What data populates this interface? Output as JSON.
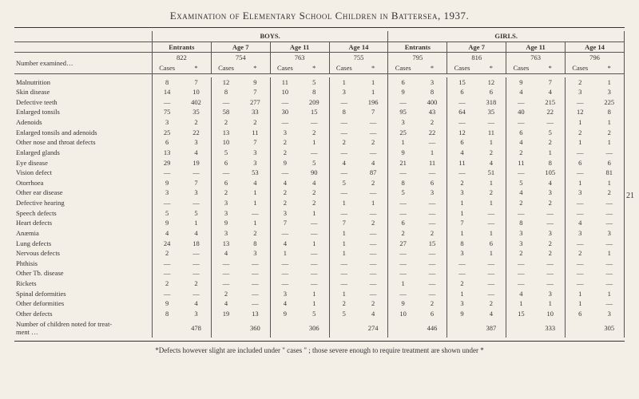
{
  "title": "Examination of Elementary School Children in Battersea, 1937.",
  "page_side_number": "21",
  "footnote": "*Defects however slight are included under \" cases \" ;  those severe enough to require treatment are shown under *",
  "colors": {
    "background": "#f3efe6",
    "text": "#333333",
    "rule": "#555555"
  },
  "typography": {
    "title_fontsize_pt": 13,
    "table_fontsize_pt": 8.5,
    "font_family": "Georgia, Times New Roman, serif"
  },
  "groups": {
    "boys": "BOYS.",
    "girls": "GIRLS."
  },
  "age_headers": [
    "Entrants",
    "Age 7",
    "Age 11",
    "Age 14"
  ],
  "subcol_headers": {
    "cases": "Cases",
    "star": "*"
  },
  "number_examined_label": "Number examined…",
  "number_examined": {
    "boys": [
      822,
      754,
      763,
      755
    ],
    "girls": [
      795,
      816,
      763,
      796
    ]
  },
  "rows": [
    {
      "label": "Malnutrition",
      "b": [
        [
          8,
          7
        ],
        [
          12,
          9
        ],
        [
          11,
          5
        ],
        [
          1,
          1
        ]
      ],
      "g": [
        [
          6,
          3
        ],
        [
          15,
          12
        ],
        [
          9,
          7
        ],
        [
          2,
          1
        ]
      ]
    },
    {
      "label": "Skin disease",
      "b": [
        [
          14,
          10
        ],
        [
          8,
          7
        ],
        [
          10,
          8
        ],
        [
          3,
          1
        ]
      ],
      "g": [
        [
          9,
          8
        ],
        [
          6,
          6
        ],
        [
          4,
          4
        ],
        [
          3,
          3
        ]
      ]
    },
    {
      "label": "Defective teeth",
      "b": [
        [
          "—",
          402
        ],
        [
          "—",
          277
        ],
        [
          "—",
          209
        ],
        [
          "—",
          196
        ]
      ],
      "g": [
        [
          "—",
          400
        ],
        [
          "—",
          318
        ],
        [
          "—",
          215
        ],
        [
          "—",
          225
        ]
      ]
    },
    {
      "label": "Enlarged tonsils",
      "b": [
        [
          75,
          35
        ],
        [
          58,
          33
        ],
        [
          30,
          15
        ],
        [
          8,
          7
        ]
      ],
      "g": [
        [
          95,
          43
        ],
        [
          64,
          35
        ],
        [
          40,
          22
        ],
        [
          12,
          8
        ]
      ]
    },
    {
      "label": "Adenoids",
      "b": [
        [
          3,
          2
        ],
        [
          2,
          2
        ],
        [
          "—",
          "—"
        ],
        [
          "—",
          "—"
        ]
      ],
      "g": [
        [
          3,
          2
        ],
        [
          "—",
          "—"
        ],
        [
          "—",
          "—"
        ],
        [
          1,
          1
        ]
      ]
    },
    {
      "label": "Enlarged tonsils and adenoids",
      "b": [
        [
          25,
          22
        ],
        [
          13,
          11
        ],
        [
          3,
          2
        ],
        [
          "—",
          "—"
        ]
      ],
      "g": [
        [
          25,
          22
        ],
        [
          12,
          11
        ],
        [
          6,
          5
        ],
        [
          2,
          2
        ]
      ]
    },
    {
      "label": "Other nose and throat defects",
      "b": [
        [
          6,
          3
        ],
        [
          10,
          7
        ],
        [
          2,
          1
        ],
        [
          2,
          2
        ]
      ],
      "g": [
        [
          1,
          "—"
        ],
        [
          6,
          1
        ],
        [
          4,
          2
        ],
        [
          1,
          1
        ]
      ]
    },
    {
      "label": "Enlarged glands",
      "b": [
        [
          13,
          4
        ],
        [
          5,
          3
        ],
        [
          2,
          "—"
        ],
        [
          "—",
          "—"
        ]
      ],
      "g": [
        [
          9,
          1
        ],
        [
          4,
          2
        ],
        [
          2,
          1
        ],
        [
          "—",
          "—"
        ]
      ]
    },
    {
      "label": "Eye disease",
      "b": [
        [
          29,
          19
        ],
        [
          6,
          3
        ],
        [
          9,
          5
        ],
        [
          4,
          4
        ]
      ],
      "g": [
        [
          21,
          11
        ],
        [
          11,
          4
        ],
        [
          11,
          8
        ],
        [
          6,
          6
        ]
      ]
    },
    {
      "label": "Vision defect",
      "b": [
        [
          "—",
          "—"
        ],
        [
          "—",
          53
        ],
        [
          "—",
          90
        ],
        [
          "—",
          87
        ]
      ],
      "g": [
        [
          "—",
          "—"
        ],
        [
          "—",
          51
        ],
        [
          "—",
          105
        ],
        [
          "—",
          81
        ]
      ]
    },
    {
      "label": "Otorrhoea",
      "b": [
        [
          9,
          7
        ],
        [
          6,
          4
        ],
        [
          4,
          4
        ],
        [
          5,
          2
        ]
      ],
      "g": [
        [
          8,
          6
        ],
        [
          2,
          1
        ],
        [
          5,
          4
        ],
        [
          1,
          1
        ]
      ]
    },
    {
      "label": "Other ear disease",
      "b": [
        [
          3,
          3
        ],
        [
          2,
          1
        ],
        [
          2,
          2
        ],
        [
          "—",
          "—"
        ]
      ],
      "g": [
        [
          5,
          3
        ],
        [
          3,
          2
        ],
        [
          4,
          3
        ],
        [
          3,
          2
        ]
      ]
    },
    {
      "label": "Defective hearing",
      "b": [
        [
          "—",
          "—"
        ],
        [
          3,
          1
        ],
        [
          2,
          2
        ],
        [
          1,
          1
        ]
      ],
      "g": [
        [
          "—",
          "—"
        ],
        [
          1,
          1
        ],
        [
          2,
          2
        ],
        [
          "—",
          "—"
        ]
      ]
    },
    {
      "label": "Speech defects",
      "b": [
        [
          5,
          5
        ],
        [
          3,
          "—"
        ],
        [
          3,
          1
        ],
        [
          "—",
          "—"
        ]
      ],
      "g": [
        [
          "—",
          "—"
        ],
        [
          1,
          "—"
        ],
        [
          "—",
          "—"
        ],
        [
          "—",
          "—"
        ]
      ]
    },
    {
      "label": "Heart defects",
      "b": [
        [
          9,
          1
        ],
        [
          9,
          1
        ],
        [
          7,
          "—"
        ],
        [
          7,
          2
        ]
      ],
      "g": [
        [
          6,
          "—"
        ],
        [
          7,
          "—"
        ],
        [
          8,
          "—"
        ],
        [
          4,
          "—"
        ]
      ]
    },
    {
      "label": "Anæmia",
      "b": [
        [
          4,
          4
        ],
        [
          3,
          2
        ],
        [
          "—",
          "—"
        ],
        [
          1,
          "—"
        ]
      ],
      "g": [
        [
          2,
          2
        ],
        [
          1,
          1
        ],
        [
          3,
          3
        ],
        [
          3,
          3
        ]
      ]
    },
    {
      "label": "Lung defects",
      "b": [
        [
          24,
          18
        ],
        [
          13,
          8
        ],
        [
          4,
          1
        ],
        [
          1,
          "—"
        ]
      ],
      "g": [
        [
          27,
          15
        ],
        [
          8,
          6
        ],
        [
          3,
          2
        ],
        [
          "—",
          "—"
        ]
      ]
    },
    {
      "label": "Nervous defects",
      "b": [
        [
          2,
          "—"
        ],
        [
          4,
          3
        ],
        [
          1,
          "—"
        ],
        [
          1,
          "—"
        ]
      ],
      "g": [
        [
          "—",
          "—"
        ],
        [
          3,
          1
        ],
        [
          2,
          2
        ],
        [
          2,
          1
        ]
      ]
    },
    {
      "label": "Phthisis",
      "b": [
        [
          "—",
          "—"
        ],
        [
          "—",
          "—"
        ],
        [
          "—",
          "—"
        ],
        [
          "—",
          "—"
        ]
      ],
      "g": [
        [
          "—",
          "—"
        ],
        [
          "—",
          "—"
        ],
        [
          "—",
          "—"
        ],
        [
          "—",
          "—"
        ]
      ]
    },
    {
      "label": "Other Tb. disease",
      "b": [
        [
          "—",
          "—"
        ],
        [
          "—",
          "—"
        ],
        [
          "—",
          "—"
        ],
        [
          "—",
          "—"
        ]
      ],
      "g": [
        [
          "—",
          "—"
        ],
        [
          "—",
          "—"
        ],
        [
          "—",
          "—"
        ],
        [
          "—",
          "—"
        ]
      ]
    },
    {
      "label": "Rickets",
      "b": [
        [
          2,
          2
        ],
        [
          "—",
          "—"
        ],
        [
          "—",
          "—"
        ],
        [
          "—",
          "—"
        ]
      ],
      "g": [
        [
          1,
          "—"
        ],
        [
          2,
          "—"
        ],
        [
          "—",
          "—"
        ],
        [
          "—",
          "—"
        ]
      ]
    },
    {
      "label": "Spinal deformities",
      "b": [
        [
          "—",
          "—"
        ],
        [
          2,
          "—"
        ],
        [
          3,
          1
        ],
        [
          1,
          "—"
        ]
      ],
      "g": [
        [
          "—",
          "—"
        ],
        [
          1,
          "—"
        ],
        [
          4,
          3
        ],
        [
          1,
          1
        ]
      ]
    },
    {
      "label": "Other deformities",
      "b": [
        [
          9,
          4
        ],
        [
          4,
          "—"
        ],
        [
          4,
          1
        ],
        [
          2,
          2
        ]
      ],
      "g": [
        [
          9,
          2
        ],
        [
          3,
          2
        ],
        [
          1,
          1
        ],
        [
          1,
          "—"
        ]
      ]
    },
    {
      "label": "Other defects",
      "b": [
        [
          8,
          3
        ],
        [
          19,
          13
        ],
        [
          9,
          5
        ],
        [
          5,
          4
        ]
      ],
      "g": [
        [
          10,
          6
        ],
        [
          9,
          4
        ],
        [
          15,
          10
        ],
        [
          6,
          3
        ]
      ]
    }
  ],
  "totals_label": "Number of children noted for treat-\n  ment …",
  "totals": {
    "boys": [
      478,
      360,
      306,
      274
    ],
    "girls": [
      446,
      387,
      333,
      305
    ]
  }
}
